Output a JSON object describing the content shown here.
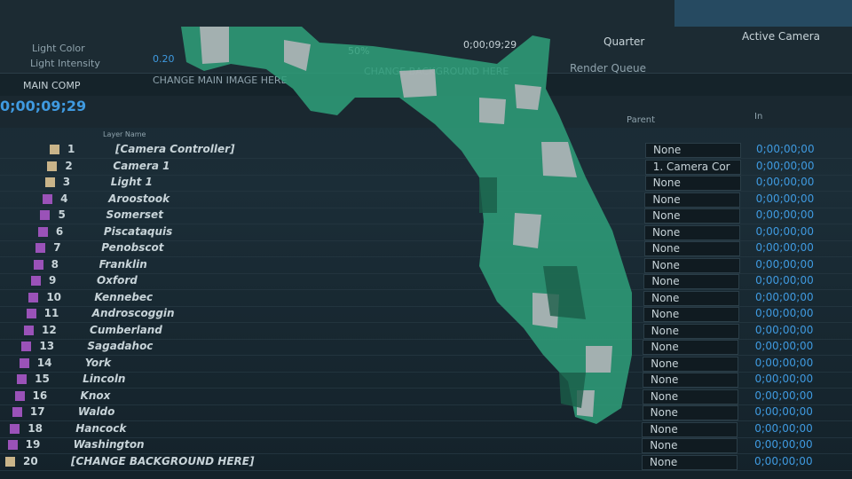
{
  "toolbar": {
    "light_color": "Light Color",
    "light_intensity": "Light Intensity",
    "intensity_value": "0.20",
    "zoom": "50%",
    "timecode": "0;00;09;29",
    "resolution": "Quarter",
    "view": "Active Camera"
  },
  "tabs": [
    "MAIN COMP",
    "CHANGE MAIN IMAGE HERE",
    "CHANGE BACKGROUND HERE",
    "Render Queue"
  ],
  "timeline": {
    "current_time": "0;00;09;29",
    "columns": {
      "layer_name": "Layer Name",
      "parent": "Parent",
      "in": "In"
    },
    "layers": [
      {
        "number": 1,
        "name": "[Camera Controller]",
        "parent": "None",
        "in": "0;00;00;00"
      },
      {
        "number": 2,
        "name": "Camera 1",
        "parent": "1. Camera Cor",
        "in": "0;00;00;00"
      },
      {
        "number": 3,
        "name": "Light 1",
        "parent": "None",
        "in": "0;00;00;00"
      },
      {
        "number": 4,
        "name": "Aroostook",
        "parent": "None",
        "in": "0;00;00;00"
      },
      {
        "number": 5,
        "name": "Somerset",
        "parent": "None",
        "in": "0;00;00;00"
      },
      {
        "number": 6,
        "name": "Piscataquis",
        "parent": "None",
        "in": "0;00;00;00"
      },
      {
        "number": 7,
        "name": "Penobscot",
        "parent": "None",
        "in": "0;00;00;00"
      },
      {
        "number": 8,
        "name": "Franklin",
        "parent": "None",
        "in": "0;00;00;00"
      },
      {
        "number": 9,
        "name": "Oxford",
        "parent": "None",
        "in": "0;00;00;00"
      },
      {
        "number": 10,
        "name": "Kennebec",
        "parent": "None",
        "in": "0;00;00;00"
      },
      {
        "number": 11,
        "name": "Androscoggin",
        "parent": "None",
        "in": "0;00;00;00"
      },
      {
        "number": 12,
        "name": "Cumberland",
        "parent": "None",
        "in": "0;00;00;00"
      },
      {
        "number": 13,
        "name": "Sagadahoc",
        "parent": "None",
        "in": "0;00;00;00"
      },
      {
        "number": 14,
        "name": "York",
        "parent": "None",
        "in": "0;00;00;00"
      },
      {
        "number": 15,
        "name": "Lincoln",
        "parent": "None",
        "in": "0;00;00;00"
      },
      {
        "number": 16,
        "name": "Knox",
        "parent": "None",
        "in": "0;00;00;00"
      },
      {
        "number": 17,
        "name": "Waldo",
        "parent": "None",
        "in": "0;00;00;00"
      },
      {
        "number": 18,
        "name": "Hancock",
        "parent": "None",
        "in": "0;00;00;00"
      },
      {
        "number": 19,
        "name": "Washington",
        "parent": "None",
        "in": "0;00;00;00"
      },
      {
        "number": 20,
        "name": "[CHANGE BACKGROUND HERE]",
        "parent": "None",
        "in": "0;00;00;00"
      }
    ]
  }
}
